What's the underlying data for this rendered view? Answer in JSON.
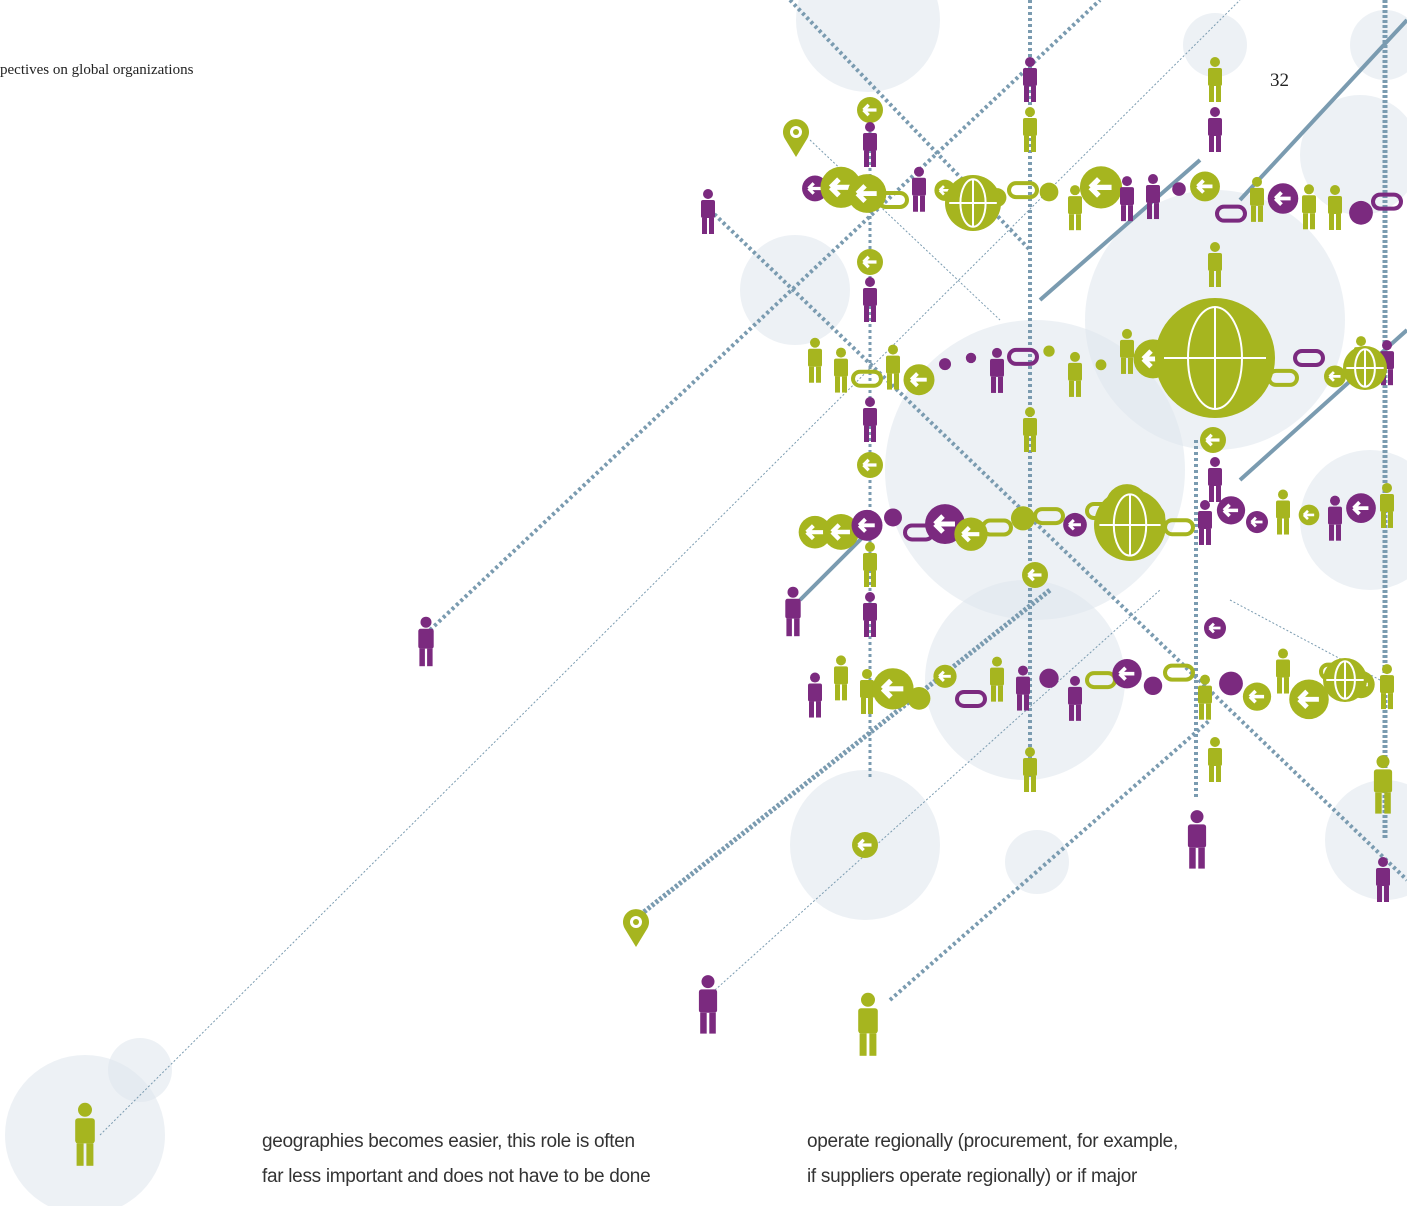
{
  "header": {
    "running_title": "pectives on global organizations",
    "page_number": "32"
  },
  "body": {
    "columns": [
      {
        "lines": [
          "geographies becomes easier, this role is often",
          "far less important and does not have to be done"
        ]
      },
      {
        "lines": [
          "operate regionally (procurement, for example,",
          "if suppliers operate regionally) or if major"
        ]
      }
    ]
  }
}
